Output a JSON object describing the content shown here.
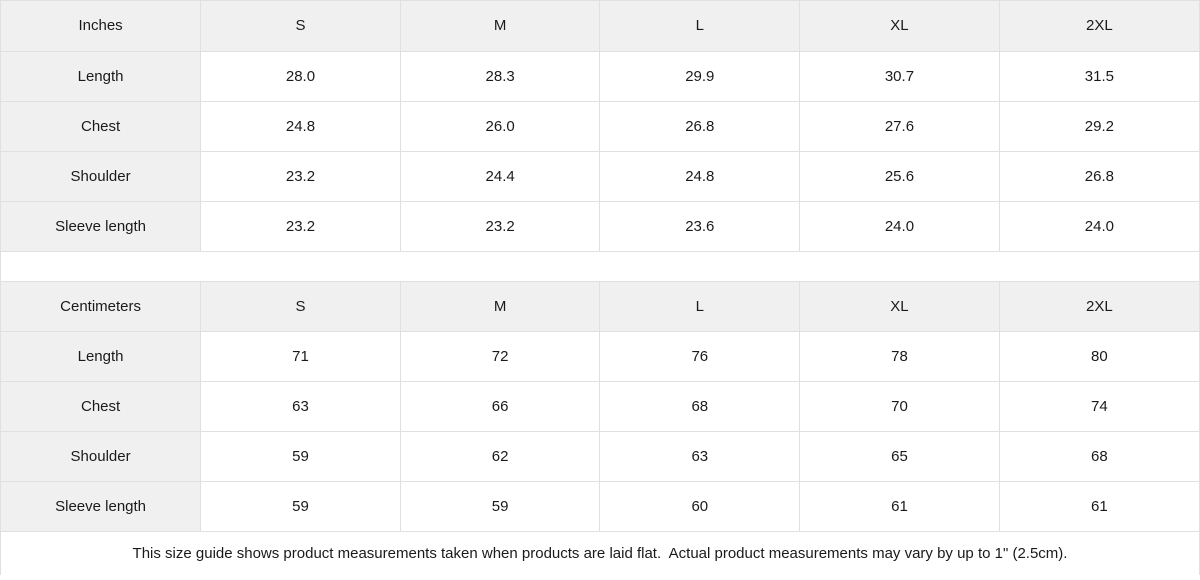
{
  "colors": {
    "header_bg": "#f0f0f0",
    "cell_bg": "#ffffff",
    "border": "#e0e0e0",
    "text": "#1a1a1a"
  },
  "size_guide": {
    "tables": [
      {
        "unit_label": "Inches",
        "columns": [
          "S",
          "M",
          "L",
          "XL",
          "2XL"
        ],
        "rows": [
          {
            "label": "Length",
            "values": [
              "28.0",
              "28.3",
              "29.9",
              "30.7",
              "31.5"
            ]
          },
          {
            "label": "Chest",
            "values": [
              "24.8",
              "26.0",
              "26.8",
              "27.6",
              "29.2"
            ]
          },
          {
            "label": "Shoulder",
            "values": [
              "23.2",
              "24.4",
              "24.8",
              "25.6",
              "26.8"
            ]
          },
          {
            "label": "Sleeve length",
            "values": [
              "23.2",
              "23.2",
              "23.6",
              "24.0",
              "24.0"
            ]
          }
        ]
      },
      {
        "unit_label": "Centimeters",
        "columns": [
          "S",
          "M",
          "L",
          "XL",
          "2XL"
        ],
        "rows": [
          {
            "label": "Length",
            "values": [
              "71",
              "72",
              "76",
              "78",
              "80"
            ]
          },
          {
            "label": "Chest",
            "values": [
              "63",
              "66",
              "68",
              "70",
              "74"
            ]
          },
          {
            "label": "Shoulder",
            "values": [
              "59",
              "62",
              "63",
              "65",
              "68"
            ]
          },
          {
            "label": "Sleeve length",
            "values": [
              "59",
              "59",
              "60",
              "61",
              "61"
            ]
          }
        ]
      }
    ],
    "footer_note": "This size guide shows product measurements taken when products are laid flat.  Actual product measurements may vary by up to 1\" (2.5cm)."
  }
}
